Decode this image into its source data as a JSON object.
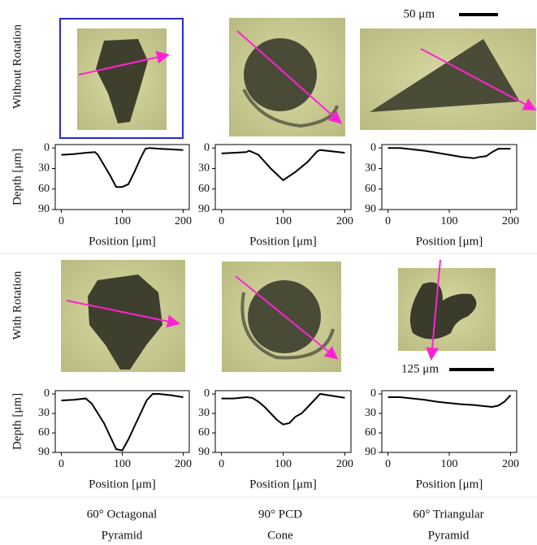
{
  "row_labels": [
    "Without Rotation",
    "With Rotation"
  ],
  "scale_bars": [
    "50 μm",
    "125 μm"
  ],
  "column_labels": [
    [
      "60° Octagonal",
      "Pyramid"
    ],
    [
      "90° PCD",
      "Cone"
    ],
    [
      "60° Triangular",
      "Pyramid"
    ]
  ],
  "chart_data": [
    {
      "type": "line",
      "ylabel": "Depth [μm]",
      "xlabel": "Position [μm]",
      "color": "#000000",
      "x": [
        0,
        20,
        40,
        55,
        60,
        70,
        80,
        90,
        100,
        110,
        120,
        130,
        138,
        145,
        160,
        180,
        200
      ],
      "values": [
        10,
        9,
        7,
        6,
        10,
        25,
        40,
        57,
        57,
        53,
        35,
        15,
        1,
        0,
        1,
        2,
        3
      ],
      "xlim": [
        -10,
        210
      ],
      "ylim": [
        90,
        -5
      ],
      "xticks": [
        0,
        100,
        200
      ],
      "yticks": [
        0,
        30,
        60,
        90
      ]
    },
    {
      "type": "line",
      "xlabel": "Position [μm]",
      "color": "#000000",
      "x": [
        0,
        20,
        40,
        45,
        60,
        80,
        100,
        120,
        140,
        155,
        160,
        180,
        200
      ],
      "values": [
        8,
        7,
        6,
        4,
        10,
        30,
        47,
        35,
        20,
        5,
        3,
        5,
        7
      ],
      "xlim": [
        -10,
        210
      ],
      "ylim": [
        90,
        -5
      ],
      "xticks": [
        0,
        100,
        200
      ],
      "yticks": [
        0,
        30,
        60,
        90
      ]
    },
    {
      "type": "line",
      "xlabel": "Position [μm]",
      "color": "#000000",
      "x": [
        0,
        20,
        40,
        60,
        80,
        100,
        120,
        140,
        150,
        160,
        170,
        180,
        200
      ],
      "values": [
        0,
        0,
        2,
        4,
        7,
        10,
        13,
        15,
        13,
        12,
        6,
        1,
        1
      ],
      "xlim": [
        -10,
        210
      ],
      "ylim": [
        90,
        -5
      ],
      "xticks": [
        0,
        100,
        200
      ],
      "yticks": [
        0,
        30,
        60,
        90
      ]
    },
    {
      "type": "line",
      "ylabel": "Depth [μm]",
      "xlabel": "Position [μm]",
      "color": "#000000",
      "x": [
        0,
        20,
        40,
        50,
        60,
        70,
        80,
        90,
        100,
        110,
        120,
        130,
        140,
        150,
        160,
        180,
        200
      ],
      "values": [
        10,
        9,
        7,
        15,
        30,
        45,
        65,
        85,
        87,
        70,
        50,
        30,
        10,
        0,
        0,
        2,
        5
      ],
      "xlim": [
        -10,
        210
      ],
      "ylim": [
        90,
        -5
      ],
      "xticks": [
        0,
        100,
        200
      ],
      "yticks": [
        0,
        30,
        60,
        90
      ]
    },
    {
      "type": "line",
      "xlabel": "Position [μm]",
      "color": "#000000",
      "x": [
        0,
        20,
        40,
        50,
        60,
        70,
        80,
        90,
        100,
        110,
        120,
        130,
        140,
        150,
        160,
        180,
        200
      ],
      "values": [
        7,
        7,
        5,
        6,
        12,
        20,
        30,
        40,
        47,
        45,
        35,
        30,
        20,
        10,
        0,
        3,
        6
      ],
      "xlim": [
        -10,
        210
      ],
      "ylim": [
        90,
        -5
      ],
      "xticks": [
        0,
        100,
        200
      ],
      "yticks": [
        0,
        30,
        60,
        90
      ]
    },
    {
      "type": "line",
      "xlabel": "Position [μm]",
      "color": "#000000",
      "x": [
        0,
        20,
        40,
        60,
        80,
        100,
        120,
        140,
        160,
        170,
        180,
        190,
        200
      ],
      "values": [
        5,
        5,
        7,
        9,
        12,
        14,
        16,
        17,
        19,
        20,
        18,
        12,
        2
      ],
      "xlim": [
        -10,
        210
      ],
      "ylim": [
        90,
        -5
      ],
      "xticks": [
        0,
        100,
        200
      ],
      "yticks": [
        0,
        30,
        60,
        90
      ]
    }
  ]
}
